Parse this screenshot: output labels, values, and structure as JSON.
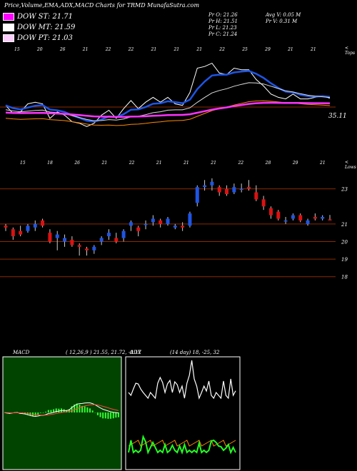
{
  "title": "Price,Volume,EMA,ADX,MACD Charts for TRMD MunafaSutra.com",
  "legend": [
    {
      "label": "DOW ST: 21.71",
      "color": "#ff00ff"
    },
    {
      "label": "DOW MT: 21.59",
      "color": "#ffffff"
    },
    {
      "label": "DOW PT: 21.03",
      "color": "#ffccff"
    }
  ],
  "stats": {
    "pr_o": "Pr   O: 21.26",
    "pr_h": "Pr   H: 21.51",
    "pr_l": "Pr   L: 21.23",
    "pr_c": "Pr   C: 21.24",
    "avg_v": "Avg V: 0.05 M",
    "pr_v": "Pr   V: 0.31 M"
  },
  "top_panel": {
    "corner": "< Tops",
    "value_label": "35.11",
    "date_ticks": [
      "15",
      "20",
      "26",
      "21",
      "22",
      "22",
      "21",
      "21",
      "21",
      "22",
      "25",
      "29",
      "21",
      "21"
    ]
  },
  "price_panel": {
    "corner": "< Lows",
    "date_ticks": [
      "15",
      "18",
      "26",
      "21",
      "22",
      "21",
      "21",
      "21",
      "22",
      "28",
      "29",
      "21"
    ],
    "y_labels": [
      "23",
      "21",
      "20",
      "19",
      "18"
    ]
  },
  "macd": {
    "label": "MACD",
    "params": "( 12,26,9 ) 21.55, 21.72, -0.17"
  },
  "adx": {
    "label": "ADX",
    "params": "(14 day) 18, -25, 32"
  },
  "chart_data": {
    "type": "candlestick",
    "ylim": [
      17.5,
      24
    ],
    "y_ticks": [
      23,
      21,
      20,
      19,
      18
    ],
    "candles": [
      {
        "o": 20.9,
        "h": 21.0,
        "l": 20.6,
        "c": 20.8
      },
      {
        "o": 20.7,
        "h": 20.8,
        "l": 20.1,
        "c": 20.3
      },
      {
        "o": 20.6,
        "h": 20.9,
        "l": 20.3,
        "c": 20.4
      },
      {
        "o": 20.6,
        "h": 21.0,
        "l": 20.5,
        "c": 20.9
      },
      {
        "o": 20.8,
        "h": 21.2,
        "l": 20.6,
        "c": 21.0
      },
      {
        "o": 21.2,
        "h": 21.3,
        "l": 20.8,
        "c": 20.9
      },
      {
        "o": 20.5,
        "h": 20.7,
        "l": 19.9,
        "c": 20.0
      },
      {
        "o": 20.2,
        "h": 20.6,
        "l": 19.5,
        "c": 20.4
      },
      {
        "o": 20.0,
        "h": 20.4,
        "l": 19.7,
        "c": 20.2
      },
      {
        "o": 20.1,
        "h": 20.3,
        "l": 19.7,
        "c": 19.8
      },
      {
        "o": 19.8,
        "h": 19.9,
        "l": 19.2,
        "c": 19.7
      },
      {
        "o": 19.6,
        "h": 19.7,
        "l": 19.2,
        "c": 19.5
      },
      {
        "o": 19.5,
        "h": 19.8,
        "l": 19.3,
        "c": 19.7
      },
      {
        "o": 20.0,
        "h": 20.3,
        "l": 19.8,
        "c": 20.2
      },
      {
        "o": 20.3,
        "h": 20.7,
        "l": 20.1,
        "c": 20.5
      },
      {
        "o": 20.2,
        "h": 20.5,
        "l": 19.9,
        "c": 20.0
      },
      {
        "o": 20.2,
        "h": 20.7,
        "l": 20.0,
        "c": 20.6
      },
      {
        "o": 20.9,
        "h": 21.2,
        "l": 20.6,
        "c": 21.1
      },
      {
        "o": 20.8,
        "h": 20.9,
        "l": 20.3,
        "c": 20.6
      },
      {
        "o": 21.0,
        "h": 21.2,
        "l": 20.7,
        "c": 21.0
      },
      {
        "o": 21.1,
        "h": 21.5,
        "l": 20.9,
        "c": 21.3
      },
      {
        "o": 21.2,
        "h": 21.3,
        "l": 20.8,
        "c": 21.0
      },
      {
        "o": 21.0,
        "h": 21.4,
        "l": 20.9,
        "c": 21.3
      },
      {
        "o": 20.8,
        "h": 21.0,
        "l": 20.7,
        "c": 20.9
      },
      {
        "o": 20.9,
        "h": 21.1,
        "l": 20.6,
        "c": 20.8
      },
      {
        "o": 20.9,
        "h": 21.7,
        "l": 20.8,
        "c": 21.6
      },
      {
        "o": 22.2,
        "h": 23.2,
        "l": 22.0,
        "c": 23.1
      },
      {
        "o": 23.1,
        "h": 23.5,
        "l": 22.9,
        "c": 23.2
      },
      {
        "o": 23.2,
        "h": 23.6,
        "l": 22.9,
        "c": 23.4
      },
      {
        "o": 23.1,
        "h": 23.2,
        "l": 22.6,
        "c": 22.8
      },
      {
        "o": 23.0,
        "h": 23.2,
        "l": 22.6,
        "c": 22.7
      },
      {
        "o": 22.8,
        "h": 23.3,
        "l": 22.7,
        "c": 23.1
      },
      {
        "o": 23.0,
        "h": 23.3,
        "l": 22.8,
        "c": 23.0
      },
      {
        "o": 23.1,
        "h": 23.5,
        "l": 22.9,
        "c": 23.0
      },
      {
        "o": 22.8,
        "h": 23.2,
        "l": 22.3,
        "c": 22.4
      },
      {
        "o": 22.4,
        "h": 22.6,
        "l": 21.8,
        "c": 22.0
      },
      {
        "o": 21.9,
        "h": 22.0,
        "l": 21.3,
        "c": 21.5
      },
      {
        "o": 21.7,
        "h": 21.8,
        "l": 21.2,
        "c": 21.3
      },
      {
        "o": 21.2,
        "h": 21.4,
        "l": 21.0,
        "c": 21.2
      },
      {
        "o": 21.3,
        "h": 21.6,
        "l": 21.2,
        "c": 21.5
      },
      {
        "o": 21.5,
        "h": 21.6,
        "l": 21.1,
        "c": 21.2
      },
      {
        "o": 21.0,
        "h": 21.3,
        "l": 20.9,
        "c": 21.2
      },
      {
        "o": 21.4,
        "h": 21.6,
        "l": 21.2,
        "c": 21.3
      },
      {
        "o": 21.3,
        "h": 21.5,
        "l": 21.2,
        "c": 21.4
      },
      {
        "o": 21.26,
        "h": 21.51,
        "l": 21.23,
        "c": 21.24
      }
    ]
  }
}
